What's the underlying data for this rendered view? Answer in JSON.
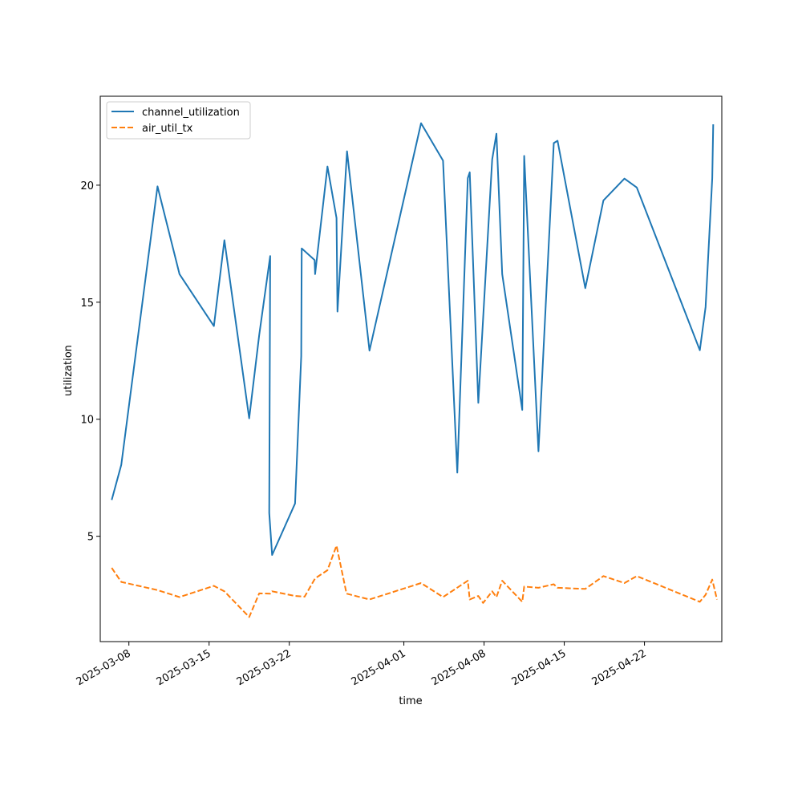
{
  "chart_data": {
    "type": "line",
    "title": "",
    "xlabel": "time",
    "ylabel": "utilization",
    "x_axis_type": "date",
    "xlim": [
      "2025-03-05T12:00",
      "2025-04-28T18:00"
    ],
    "ylim": [
      0.5,
      23.8
    ],
    "x_tick_labels": [
      "2025-03-08",
      "2025-03-15",
      "2025-03-22",
      "2025-04-01",
      "2025-04-08",
      "2025-04-15",
      "2025-04-22"
    ],
    "y_ticks": [
      5,
      10,
      15,
      20
    ],
    "grid": false,
    "legend_position": "top-left",
    "series": [
      {
        "name": "channel_utilization",
        "color": "#1f77b4",
        "dash": "solid",
        "points": [
          [
            "2025-03-06T12:00",
            6.55
          ],
          [
            "2025-03-07T08:00",
            8.05
          ],
          [
            "2025-03-10T12:00",
            19.95
          ],
          [
            "2025-03-12T10:00",
            16.2
          ],
          [
            "2025-03-15T10:00",
            13.98
          ],
          [
            "2025-03-16T08:00",
            17.65
          ],
          [
            "2025-03-18T12:00",
            10.04
          ],
          [
            "2025-03-19T09:00",
            13.6
          ],
          [
            "2025-03-20T08:00",
            16.97
          ],
          [
            "2025-03-20T06:00",
            6.0
          ],
          [
            "2025-03-20T12:00",
            4.2
          ],
          [
            "2025-03-22T12:00",
            6.4
          ],
          [
            "2025-03-23T01:00",
            12.7
          ],
          [
            "2025-03-23T02:00",
            17.3
          ],
          [
            "2025-03-24T05:00",
            16.8
          ],
          [
            "2025-03-24T06:00",
            16.2
          ],
          [
            "2025-03-25T08:00",
            20.8
          ],
          [
            "2025-03-26T03:00",
            18.6
          ],
          [
            "2025-03-26T05:00",
            14.6
          ],
          [
            "2025-03-27T01:00",
            21.45
          ],
          [
            "2025-03-29T00:00",
            12.93
          ],
          [
            "2025-04-02T12:00",
            22.65
          ],
          [
            "2025-04-04T10:00",
            21.05
          ],
          [
            "2025-04-05T16:00",
            7.72
          ],
          [
            "2025-04-06T14:00",
            20.3
          ],
          [
            "2025-04-06T18:00",
            20.55
          ],
          [
            "2025-04-07T12:00",
            10.7
          ],
          [
            "2025-04-08T17:00",
            21.1
          ],
          [
            "2025-04-09T02:00",
            22.2
          ],
          [
            "2025-04-09T14:00",
            16.2
          ],
          [
            "2025-04-11T08:00",
            10.4
          ],
          [
            "2025-04-11T12:00",
            21.25
          ],
          [
            "2025-04-12T18:00",
            8.63
          ],
          [
            "2025-04-14T02:00",
            21.8
          ],
          [
            "2025-04-14T10:00",
            21.9
          ],
          [
            "2025-04-16T20:00",
            15.6
          ],
          [
            "2025-04-18T10:00",
            19.35
          ],
          [
            "2025-04-20T06:00",
            20.28
          ],
          [
            "2025-04-21T08:00",
            19.9
          ],
          [
            "2025-04-26T20:00",
            12.95
          ],
          [
            "2025-04-27T08:00",
            14.8
          ],
          [
            "2025-04-27T22:00",
            20.3
          ],
          [
            "2025-04-28T00:00",
            22.6
          ]
        ]
      },
      {
        "name": "air_util_tx",
        "color": "#ff7f0e",
        "dash": "dashed",
        "points": [
          [
            "2025-03-06T12:00",
            3.65
          ],
          [
            "2025-03-07T08:00",
            3.05
          ],
          [
            "2025-03-10T12:00",
            2.7
          ],
          [
            "2025-03-12T10:00",
            2.4
          ],
          [
            "2025-03-15T10:00",
            2.88
          ],
          [
            "2025-03-16T08:00",
            2.65
          ],
          [
            "2025-03-18T12:00",
            1.55
          ],
          [
            "2025-03-19T09:00",
            2.56
          ],
          [
            "2025-03-20T08:00",
            2.55
          ],
          [
            "2025-03-20T12:00",
            2.65
          ],
          [
            "2025-03-22T12:00",
            2.45
          ],
          [
            "2025-03-23T08:00",
            2.42
          ],
          [
            "2025-03-24T06:00",
            3.2
          ],
          [
            "2025-03-25T08:00",
            3.55
          ],
          [
            "2025-03-26T03:00",
            4.6
          ],
          [
            "2025-03-27T00:00",
            2.55
          ],
          [
            "2025-03-29T00:00",
            2.3
          ],
          [
            "2025-04-02T12:00",
            3.0
          ],
          [
            "2025-04-04T10:00",
            2.4
          ],
          [
            "2025-04-06T14:00",
            3.1
          ],
          [
            "2025-04-06T18:00",
            2.3
          ],
          [
            "2025-04-07T12:00",
            2.45
          ],
          [
            "2025-04-07T22:00",
            2.15
          ],
          [
            "2025-04-08T17:00",
            2.65
          ],
          [
            "2025-04-09T02:00",
            2.4
          ],
          [
            "2025-04-09T14:00",
            3.1
          ],
          [
            "2025-04-11T08:00",
            2.2
          ],
          [
            "2025-04-11T12:00",
            2.85
          ],
          [
            "2025-04-12T18:00",
            2.8
          ],
          [
            "2025-04-14T02:00",
            2.95
          ],
          [
            "2025-04-14T10:00",
            2.8
          ],
          [
            "2025-04-16T20:00",
            2.75
          ],
          [
            "2025-04-18T10:00",
            3.3
          ],
          [
            "2025-04-20T06:00",
            3.0
          ],
          [
            "2025-04-21T08:00",
            3.3
          ],
          [
            "2025-04-26T20:00",
            2.2
          ],
          [
            "2025-04-27T08:00",
            2.5
          ],
          [
            "2025-04-27T22:00",
            3.15
          ],
          [
            "2025-04-28T08:00",
            2.3
          ]
        ]
      }
    ]
  }
}
